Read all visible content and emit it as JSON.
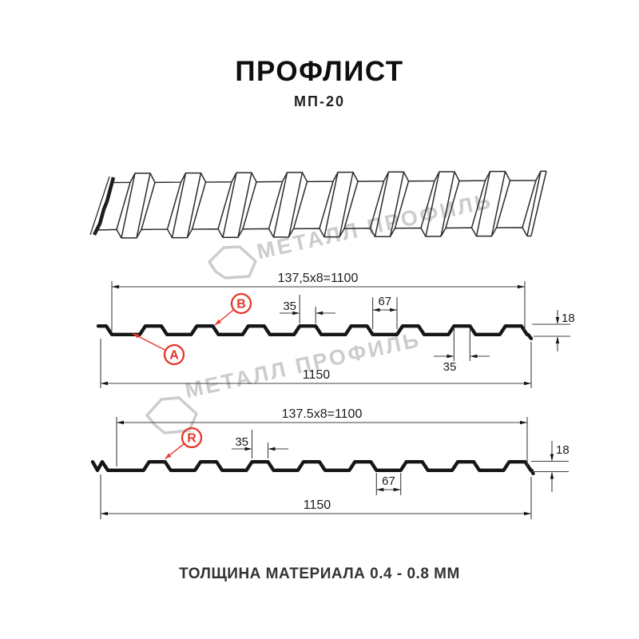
{
  "page": {
    "title": "ПРОФЛИСТ",
    "subtitle": "МП-20",
    "caption": "ТОЛЩИНА МАТЕРИАЛА 0.4 - 0.8 ММ"
  },
  "watermark": {
    "brand": "МЕТАЛЛ ПРОФИЛЬ"
  },
  "colors": {
    "line": "#161616",
    "thin": "#404040",
    "text": "#1b1b1b",
    "red": "#e8362a",
    "watermark": "#cccccc",
    "sheet": "#2b2b2b"
  },
  "sections": [
    {
      "id": "profile-section-ab",
      "dims": {
        "module": "137,5x8=1100",
        "overall": "1150",
        "crest_top": "35",
        "crest_top_lower": "35",
        "base": "67",
        "height": "18"
      },
      "callouts": [
        {
          "label": "A"
        },
        {
          "label": "B"
        }
      ]
    },
    {
      "id": "profile-section-r",
      "dims": {
        "module": "137.5x8=1100",
        "overall": "1150",
        "crest_top": "35",
        "valley": "67",
        "height": "18"
      },
      "callouts": [
        {
          "label": "R"
        }
      ]
    }
  ]
}
